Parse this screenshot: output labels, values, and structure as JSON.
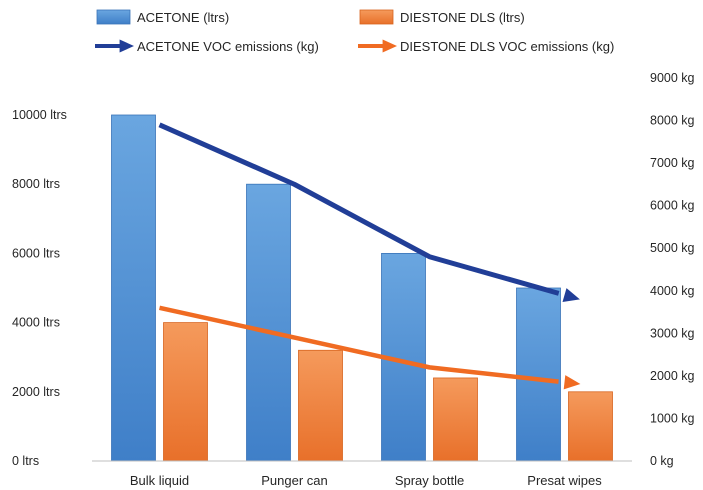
{
  "chart_data": {
    "type": "bar",
    "categories": [
      "Bulk liquid",
      "Punger can",
      "Spray bottle",
      "Presat wipes"
    ],
    "series": [
      {
        "name": "ACETONE (ltrs)",
        "kind": "bar",
        "axis": "left",
        "color": "#4a8cd4",
        "values": [
          10000,
          8000,
          6000,
          5000
        ]
      },
      {
        "name": "DIESTONE DLS (ltrs)",
        "kind": "bar",
        "axis": "left",
        "color": "#ee7d35",
        "values": [
          4000,
          3200,
          2400,
          2000
        ]
      },
      {
        "name": "ACETONE VOC emissions (kg)",
        "kind": "line",
        "axis": "right",
        "color": "#213e97",
        "values": [
          7900,
          6500,
          4800,
          3900
        ]
      },
      {
        "name": "DIESTONE DLS VOC emissions (kg)",
        "kind": "line",
        "axis": "right",
        "color": "#f06b22",
        "values": [
          3600,
          2900,
          2200,
          1850
        ]
      }
    ],
    "y_left": {
      "range": [
        0,
        10000
      ],
      "ticks": [
        "0 ltrs",
        "2000 ltrs",
        "4000 ltrs",
        "6000 ltrs",
        "8000 ltrs",
        "10000 ltrs"
      ]
    },
    "y_right": {
      "range": [
        0,
        9000
      ],
      "ticks": [
        "0 kg",
        "1000 kg",
        "2000 kg",
        "3000 kg",
        "4000 kg",
        "5000 kg",
        "6000 kg",
        "7000 kg",
        "8000 kg",
        "9000 kg"
      ]
    },
    "grid": false,
    "legend": "top"
  }
}
